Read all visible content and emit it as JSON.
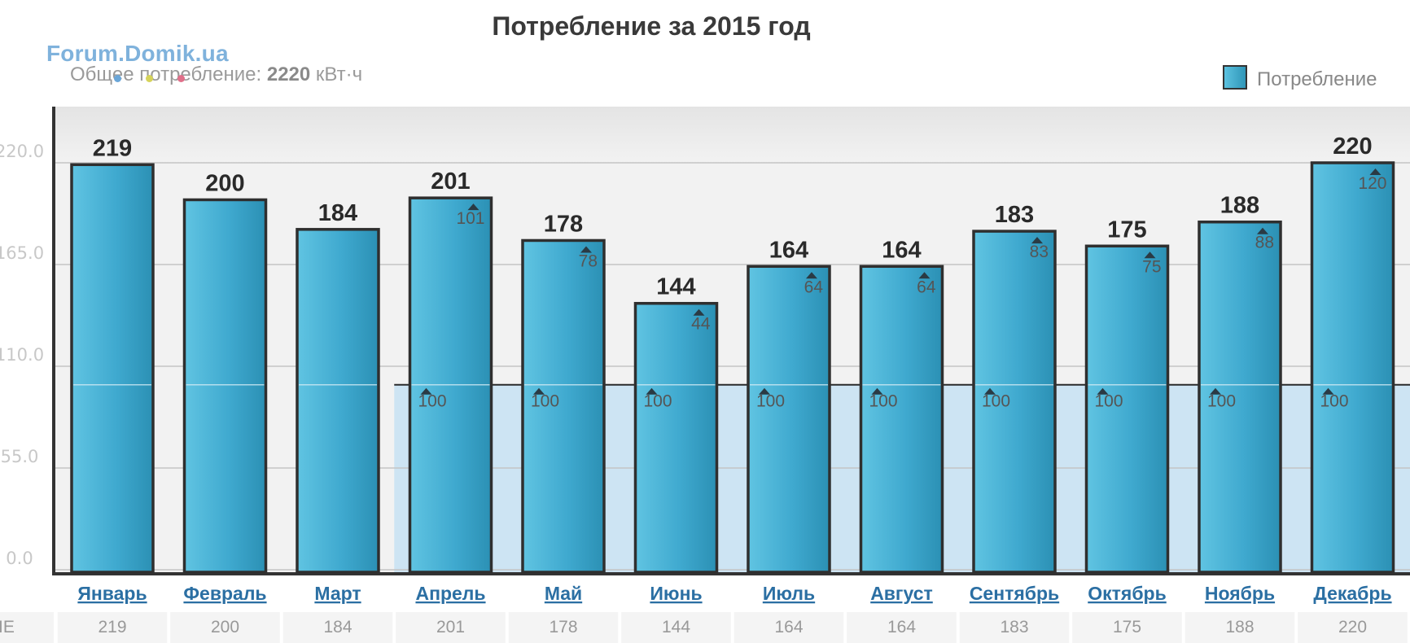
{
  "chart_data": {
    "type": "bar",
    "title": "Потребление за 2015 год",
    "categories": [
      "Январь",
      "Февраль",
      "Март",
      "Апрель",
      "Май",
      "Июнь",
      "Июль",
      "Август",
      "Сентябрь",
      "Октябрь",
      "Ноябрь",
      "Декабрь"
    ],
    "series": [
      {
        "name": "Потребление",
        "values": [
          219,
          200,
          184,
          201,
          178,
          144,
          164,
          164,
          183,
          175,
          188,
          220
        ]
      }
    ],
    "upper_markers": [
      null,
      null,
      null,
      101,
      78,
      44,
      64,
      64,
      83,
      75,
      88,
      120
    ],
    "lower_markers": [
      null,
      null,
      null,
      100,
      100,
      100,
      100,
      100,
      100,
      100,
      100,
      100
    ],
    "reference_line": 100,
    "yticks": [
      "0.0",
      "55.0",
      "110.0",
      "165.0",
      "220.0"
    ],
    "ylim": [
      0,
      250
    ],
    "grid": true,
    "legend_placement": "top-right",
    "colors": {
      "bar": "#3aa9cf",
      "band": "#cde4f3",
      "background": "#f1f1f1"
    }
  },
  "header": {
    "watermark": "Forum.Domik.ua",
    "total_label": "Общее потребление:",
    "total_value": "2220",
    "total_unit": "кВт·ч",
    "legend_label": "Потребление"
  },
  "table_row": {
    "label_fragment": "IE"
  }
}
